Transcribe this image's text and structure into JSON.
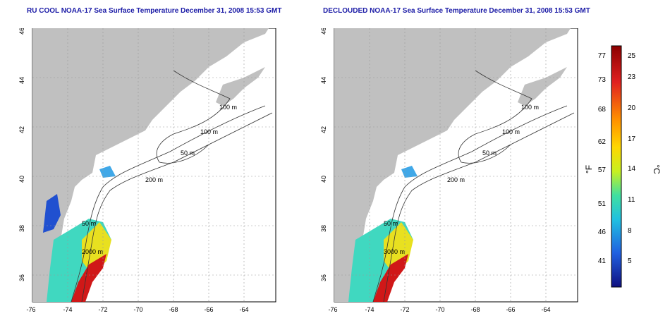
{
  "panels": [
    {
      "title": "RU COOL NOAA-17 Sea Surface Temperature December 31, 2008 15:53 GMT",
      "contour_labels": [
        "100 m",
        "100 m",
        "50 m",
        "200 m",
        "50 m",
        "2000 m"
      ]
    },
    {
      "title": "DECLOUDED NOAA-17 Sea Surface Temperature December 31, 2008 15:53 GMT",
      "contour_labels": [
        "100 m",
        "100 m",
        "50 m",
        "200 m",
        "50 m",
        "3000 m"
      ]
    }
  ],
  "axes": {
    "lon_ticks": [
      "-76",
      "-74",
      "-72",
      "-70",
      "-68",
      "-66",
      "-64"
    ],
    "lat_ticks": [
      "46",
      "44",
      "42",
      "40",
      "38",
      "36"
    ]
  },
  "colorbar": {
    "f_label": "°F",
    "c_label": "°C",
    "f_ticks": [
      "77",
      "73",
      "68",
      "62",
      "57",
      "51",
      "46",
      "41"
    ],
    "c_ticks": [
      "25",
      "23",
      "20",
      "17",
      "14",
      "11",
      "8",
      "5"
    ],
    "colors": [
      "#8b0000",
      "#e02020",
      "#ff8c00",
      "#ffd700",
      "#c8f020",
      "#40e0a0",
      "#20c0e0",
      "#2060e0",
      "#101080"
    ]
  }
}
